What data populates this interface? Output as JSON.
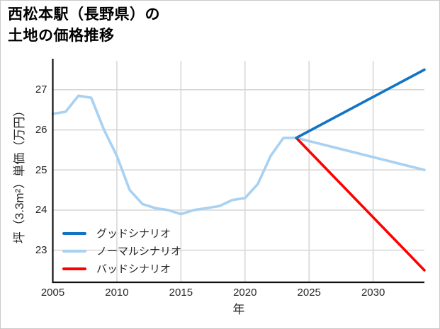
{
  "title": {
    "line1": "西松本駅（長野県）の",
    "line2": "土地の価格推移"
  },
  "chart_data": {
    "type": "line",
    "title": "西松本駅（長野県）の土地の価格推移",
    "xlabel": "年",
    "ylabel": "坪（3.3m²）単価（万円）",
    "xlim": [
      2005,
      2034
    ],
    "ylim": [
      22.2,
      27.72
    ],
    "x_ticks": [
      2005,
      2010,
      2015,
      2020,
      2025,
      2030
    ],
    "y_ticks": [
      23,
      24,
      25,
      26,
      27
    ],
    "grid": true,
    "legend_position": "lower-left",
    "series": [
      {
        "key": "good",
        "name": "グッドシナリオ",
        "color": "#1274c5",
        "x": [
          2024,
          2034
        ],
        "values": [
          25.8,
          27.5
        ]
      },
      {
        "key": "normal",
        "name": "ノーマルシナリオ",
        "color": "#a8d1f2",
        "x": [
          2005,
          2006,
          2007,
          2008,
          2009,
          2010,
          2011,
          2012,
          2013,
          2014,
          2015,
          2016,
          2017,
          2018,
          2019,
          2020,
          2021,
          2022,
          2023,
          2024,
          2034
        ],
        "values": [
          26.4,
          26.45,
          26.85,
          26.8,
          26.0,
          25.35,
          24.5,
          24.15,
          24.05,
          24.0,
          23.9,
          24.0,
          24.05,
          24.1,
          24.25,
          24.3,
          24.65,
          25.35,
          25.8,
          25.8,
          25.0
        ]
      },
      {
        "key": "bad",
        "name": "バッドシナリオ",
        "color": "#fe0000",
        "x": [
          2024,
          2034
        ],
        "values": [
          25.8,
          22.5
        ]
      }
    ]
  },
  "colors": {
    "grid": "#d8d8d8",
    "axis": "#111111",
    "tick_label": "#262626",
    "background": "#ffffff",
    "border": "#c9c9c9"
  }
}
